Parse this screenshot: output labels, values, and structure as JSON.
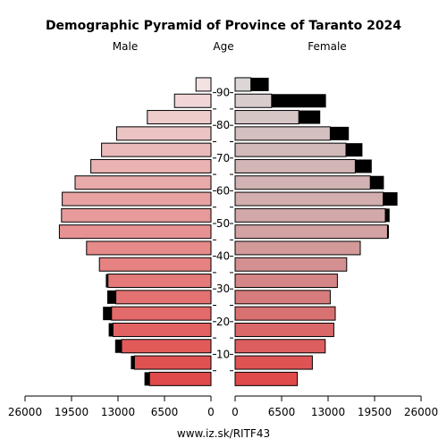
{
  "chart_data": {
    "type": "bar",
    "title": "Demographic Pyramid of Province of Taranto 2024",
    "left_label": "Male",
    "center_label": "Age",
    "right_label": "Female",
    "footer": "www.iz.sk/RITF43",
    "age_ticks": [
      "10",
      "20",
      "30",
      "40",
      "50",
      "60",
      "70",
      "80",
      "90"
    ],
    "x_ticks_left": [
      "26000",
      "19500",
      "13000",
      "6500",
      "0"
    ],
    "x_ticks_right": [
      "0",
      "6500",
      "13000",
      "19500",
      "26000"
    ],
    "x_max": 26000,
    "age_groups": [
      "0-4",
      "5-9",
      "10-14",
      "15-19",
      "20-24",
      "25-29",
      "30-34",
      "35-39",
      "40-44",
      "45-49",
      "50-54",
      "55-59",
      "60-64",
      "65-69",
      "70-74",
      "75-79",
      "80-84",
      "85-89",
      "90+"
    ],
    "male": [
      8600,
      10700,
      12500,
      13700,
      13900,
      13300,
      14400,
      15600,
      17400,
      21200,
      20900,
      20800,
      19000,
      16800,
      15300,
      13200,
      8900,
      5100,
      2100
    ],
    "male_excess": [
      700,
      500,
      900,
      600,
      1200,
      1200,
      300,
      0,
      0,
      0,
      0,
      0,
      0,
      0,
      0,
      0,
      0,
      0,
      0
    ],
    "female": [
      8700,
      10800,
      12600,
      13800,
      14000,
      13300,
      14300,
      15600,
      17500,
      21300,
      21000,
      20700,
      18900,
      16800,
      15500,
      13300,
      8900,
      5100,
      2200
    ],
    "female_excess": [
      0,
      0,
      0,
      0,
      0,
      0,
      0,
      0,
      0,
      200,
      600,
      2000,
      1900,
      2300,
      2300,
      2600,
      3000,
      7600,
      2500
    ],
    "colors": {
      "male": [
        "#e04a4a",
        "#e05252",
        "#e15a5a",
        "#e26262",
        "#e36a6a",
        "#e47272",
        "#e57a7a",
        "#e68282",
        "#e68a8a",
        "#e79292",
        "#e89a9a",
        "#e9a2a2",
        "#e9aaaa",
        "#eab2b2",
        "#eababa",
        "#ecc4c4",
        "#eecccc",
        "#f0d6d6",
        "#f2e2e2"
      ],
      "female": [
        "#e04a4a",
        "#de5454",
        "#dc5e5e",
        "#da6868",
        "#d87272",
        "#d77c7c",
        "#d58686",
        "#d49090",
        "#d39a9a",
        "#d3a2a2",
        "#d2a8a8",
        "#d2aeae",
        "#d2b2b2",
        "#d2b6b6",
        "#d3baba",
        "#d4c0c0",
        "#d6c6c6",
        "#d8cccc",
        "#dcd6d6"
      ],
      "excess": "#000000"
    }
  }
}
